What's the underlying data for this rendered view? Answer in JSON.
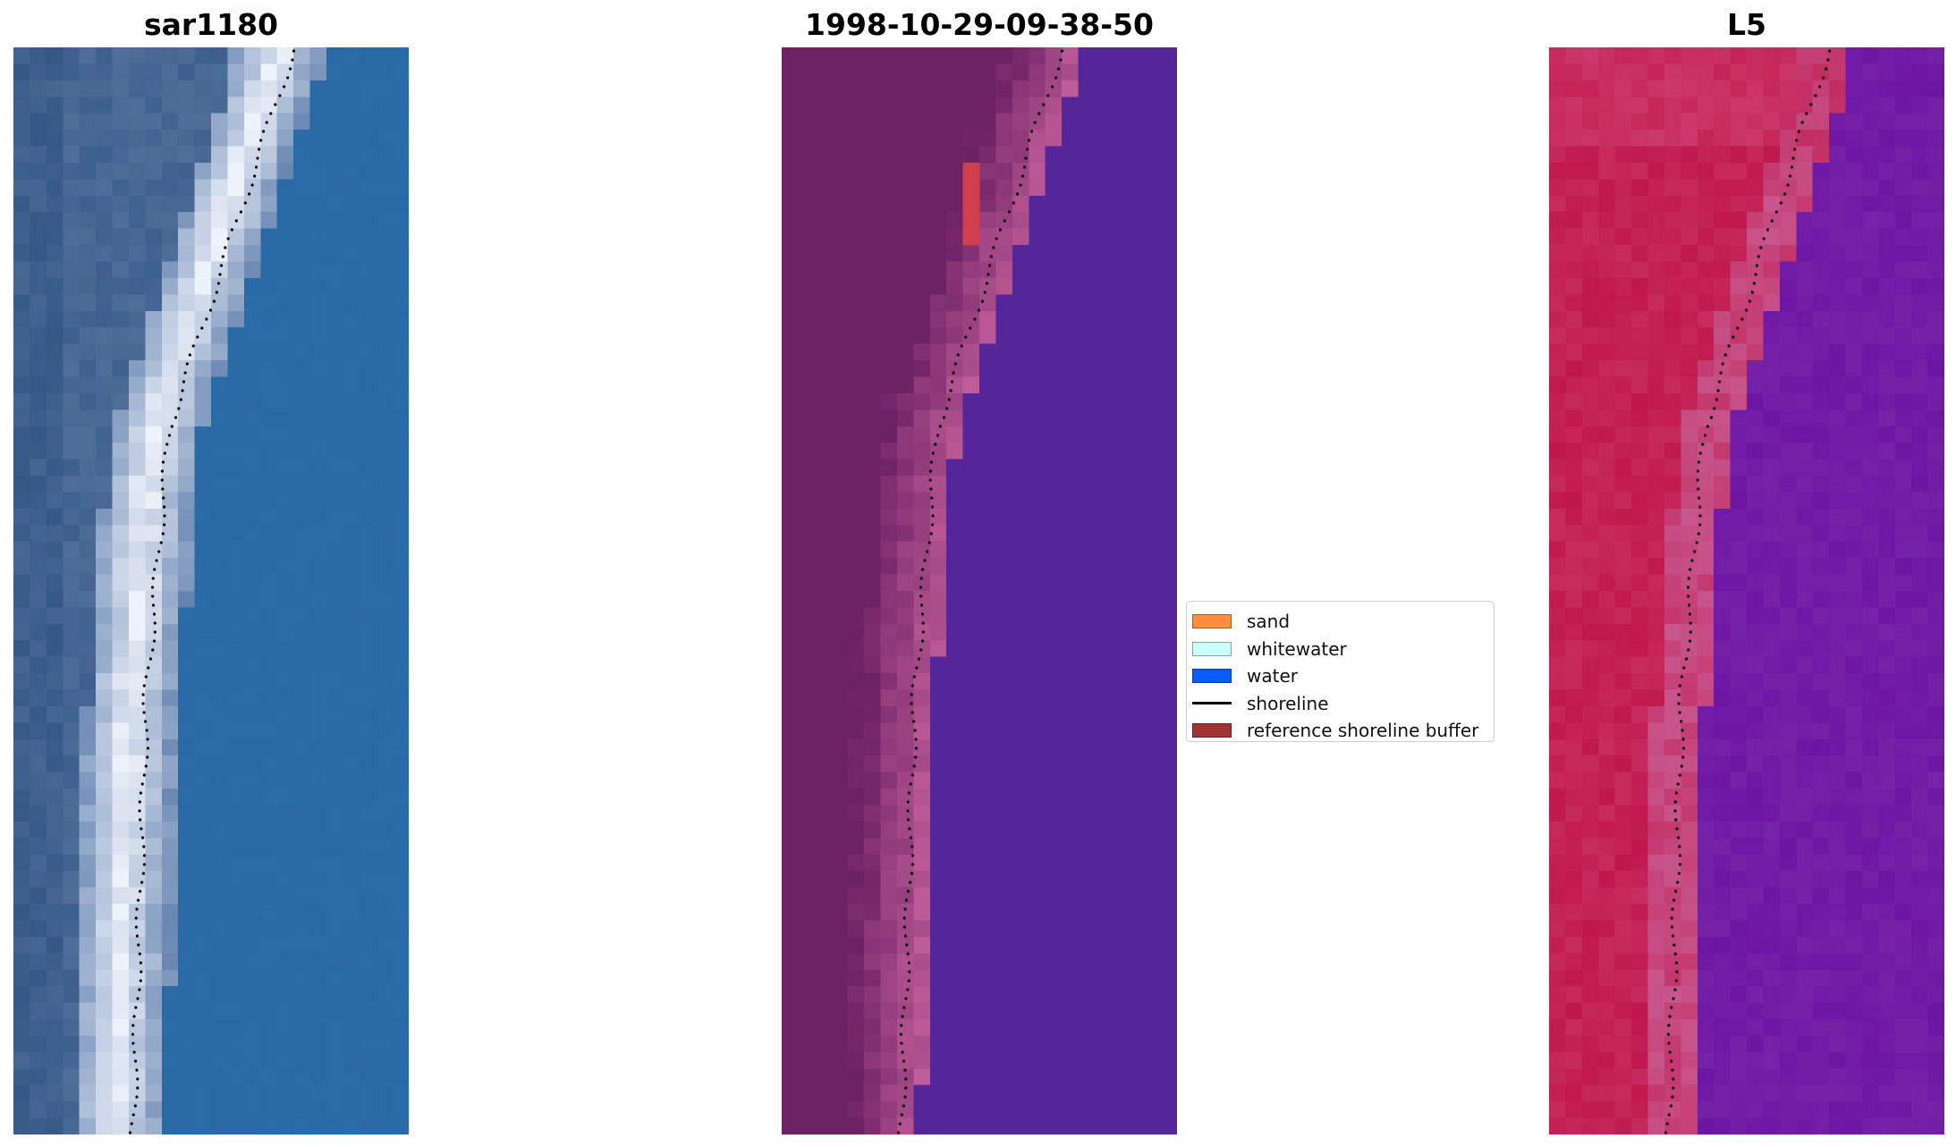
{
  "panels": [
    {
      "id": "rgb",
      "title": "sar1180"
    },
    {
      "id": "classified",
      "title": "1998-10-29-09-38-50"
    },
    {
      "id": "index",
      "title": "L5"
    }
  ],
  "legend": {
    "items": [
      {
        "label": "sand",
        "color": "#ff8c3f",
        "kind": "patch"
      },
      {
        "label": "whitewater",
        "color": "#c8fffc",
        "kind": "patch"
      },
      {
        "label": "water",
        "color": "#0a5cff",
        "kind": "patch"
      },
      {
        "label": "shoreline",
        "color": "#000000",
        "kind": "line"
      },
      {
        "label": "reference shoreline buffer",
        "color": "#a03434",
        "kind": "patch"
      }
    ]
  },
  "colors": {
    "rgb_water": "#2b6aa6",
    "rgb_land": "#4f6f9a",
    "rgb_surf": "#eef2fa",
    "class_land": "#6e2266",
    "class_pink": "#c05d98",
    "class_water": "#55259a",
    "class_buffer": "#cf3f4c",
    "index_red": "#c0184c",
    "index_pink": "#c7568c",
    "index_purple": "#6e16a4"
  }
}
